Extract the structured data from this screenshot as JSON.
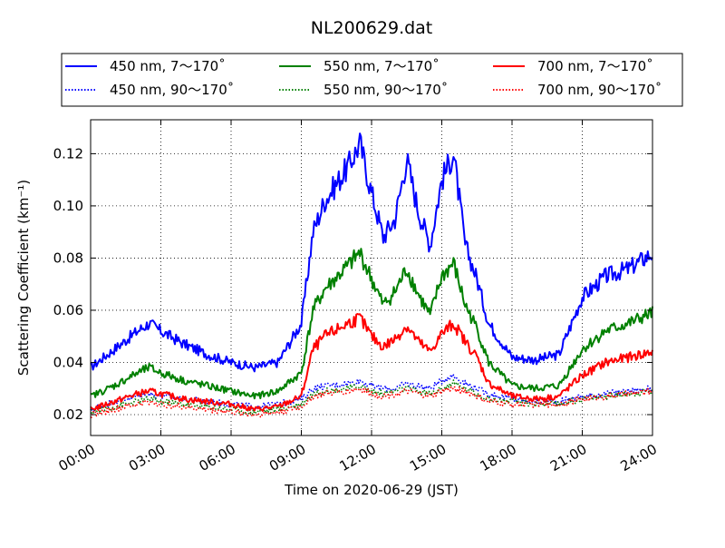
{
  "chart_data": {
    "type": "line",
    "title": "NL200629.dat",
    "xlabel": "Time on 2020-06-29 (JST)",
    "ylabel": "Scattering Coefficient (km⁻¹)",
    "xlim": [
      "00:00",
      "24:00"
    ],
    "ylim": [
      0.012,
      0.133
    ],
    "x_ticks": [
      "00:00",
      "03:00",
      "06:00",
      "09:00",
      "12:00",
      "15:00",
      "18:00",
      "21:00",
      "24:00"
    ],
    "y_ticks": [
      "0.02",
      "0.04",
      "0.06",
      "0.08",
      "0.10",
      "0.12"
    ],
    "y_tick_values": [
      0.02,
      0.04,
      0.06,
      0.08,
      0.1,
      0.12
    ],
    "grid": true,
    "legend_position": "top",
    "legend_columns": 3,
    "x": [
      "00:00",
      "01:00",
      "02:00",
      "02:30",
      "03:00",
      "04:00",
      "05:00",
      "06:00",
      "07:00",
      "08:00",
      "09:00",
      "09:30",
      "10:00",
      "11:00",
      "11:30",
      "12:00",
      "12:30",
      "13:00",
      "13:30",
      "14:00",
      "14:30",
      "15:00",
      "15:30",
      "16:00",
      "16:30",
      "17:00",
      "18:00",
      "19:00",
      "20:00",
      "21:00",
      "22:00",
      "23:00",
      "24:00"
    ],
    "series": [
      {
        "name": "450 nm, 7～170˚",
        "color": "#0000ff",
        "style": "solid",
        "values": [
          0.038,
          0.045,
          0.052,
          0.055,
          0.052,
          0.047,
          0.043,
          0.04,
          0.038,
          0.04,
          0.055,
          0.09,
          0.102,
          0.115,
          0.124,
          0.105,
          0.088,
          0.095,
          0.118,
          0.098,
          0.085,
          0.11,
          0.12,
          0.085,
          0.072,
          0.055,
          0.042,
          0.041,
          0.043,
          0.065,
          0.073,
          0.076,
          0.082
        ]
      },
      {
        "name": "450 nm, 90～170˚",
        "color": "#0000ff",
        "style": "dotted",
        "values": [
          0.022,
          0.025,
          0.027,
          0.028,
          0.027,
          0.026,
          0.025,
          0.024,
          0.023,
          0.024,
          0.026,
          0.03,
          0.031,
          0.032,
          0.033,
          0.031,
          0.03,
          0.03,
          0.032,
          0.031,
          0.03,
          0.033,
          0.035,
          0.032,
          0.03,
          0.028,
          0.026,
          0.025,
          0.025,
          0.027,
          0.028,
          0.029,
          0.03
        ]
      },
      {
        "name": "550 nm, 7～170˚",
        "color": "#008000",
        "style": "solid",
        "values": [
          0.027,
          0.031,
          0.036,
          0.038,
          0.036,
          0.033,
          0.031,
          0.029,
          0.027,
          0.029,
          0.036,
          0.06,
          0.068,
          0.077,
          0.082,
          0.072,
          0.062,
          0.067,
          0.076,
          0.066,
          0.058,
          0.073,
          0.078,
          0.062,
          0.053,
          0.04,
          0.031,
          0.03,
          0.031,
          0.045,
          0.052,
          0.055,
          0.059
        ]
      },
      {
        "name": "550 nm, 90～170˚",
        "color": "#008000",
        "style": "dotted",
        "values": [
          0.021,
          0.023,
          0.025,
          0.026,
          0.025,
          0.024,
          0.023,
          0.022,
          0.021,
          0.022,
          0.024,
          0.028,
          0.029,
          0.03,
          0.031,
          0.029,
          0.028,
          0.029,
          0.03,
          0.029,
          0.028,
          0.03,
          0.032,
          0.03,
          0.028,
          0.026,
          0.025,
          0.024,
          0.024,
          0.026,
          0.027,
          0.028,
          0.029
        ]
      },
      {
        "name": "700 nm, 7～170˚",
        "color": "#ff0000",
        "style": "solid",
        "values": [
          0.022,
          0.025,
          0.028,
          0.029,
          0.028,
          0.026,
          0.025,
          0.024,
          0.022,
          0.023,
          0.027,
          0.045,
          0.05,
          0.055,
          0.057,
          0.05,
          0.046,
          0.049,
          0.054,
          0.048,
          0.044,
          0.051,
          0.055,
          0.048,
          0.042,
          0.032,
          0.027,
          0.026,
          0.027,
          0.035,
          0.04,
          0.042,
          0.044
        ]
      },
      {
        "name": "700 nm, 90～170˚",
        "color": "#ff0000",
        "style": "dotted",
        "values": [
          0.02,
          0.022,
          0.024,
          0.025,
          0.024,
          0.023,
          0.022,
          0.021,
          0.02,
          0.021,
          0.023,
          0.027,
          0.028,
          0.029,
          0.03,
          0.028,
          0.027,
          0.028,
          0.029,
          0.028,
          0.027,
          0.029,
          0.03,
          0.029,
          0.027,
          0.025,
          0.024,
          0.024,
          0.024,
          0.026,
          0.027,
          0.028,
          0.029
        ]
      }
    ]
  }
}
